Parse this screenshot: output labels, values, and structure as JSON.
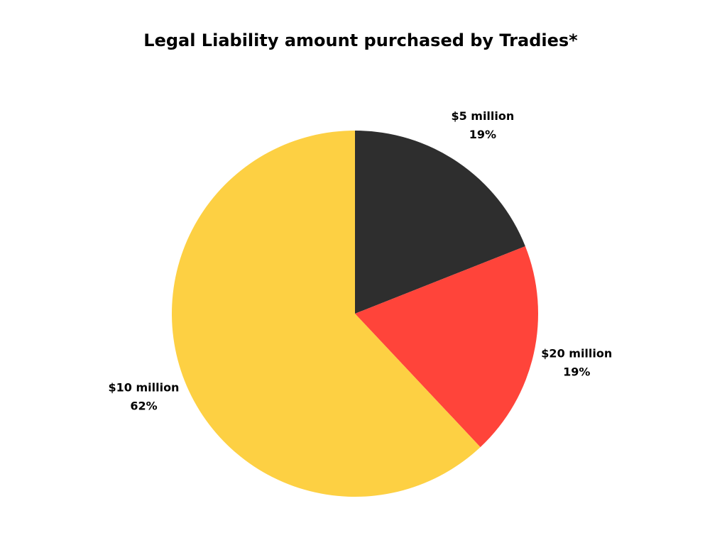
{
  "chart_data": {
    "type": "pie",
    "title": "Legal Liability amount purchased by Tradies*",
    "categories": [
      "$5 million",
      "$20 million",
      "$10 million"
    ],
    "values": [
      19,
      19,
      62
    ],
    "value_labels": [
      "19%",
      "19%",
      "62%"
    ],
    "colors": [
      "#2e2e2e",
      "#ff443a",
      "#fdd043"
    ]
  }
}
